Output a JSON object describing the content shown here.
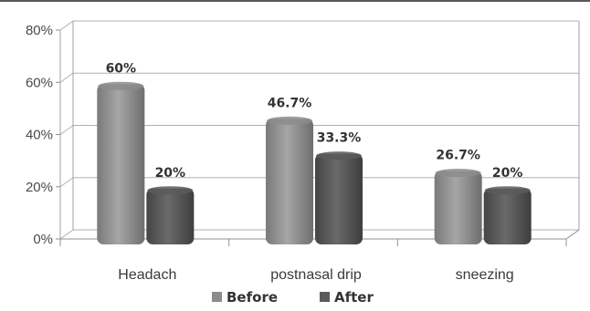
{
  "chart_data": {
    "type": "bar",
    "categories": [
      "Headach",
      "postnasal drip",
      "sneezing"
    ],
    "series": [
      {
        "name": "Before",
        "values": [
          60,
          46.7,
          26.7
        ],
        "labels": [
          "60%",
          "46.7%",
          "26.7%"
        ],
        "color": "#8c8c8c"
      },
      {
        "name": "After",
        "values": [
          20,
          33.3,
          20
        ],
        "labels": [
          "20%",
          "33.3%",
          "20%"
        ],
        "color": "#5a5a5a"
      }
    ],
    "yticks": [
      "0%",
      "20%",
      "40%",
      "60%",
      "80%"
    ],
    "ylim": [
      0,
      80
    ],
    "grid": true,
    "legend_position": "bottom"
  }
}
